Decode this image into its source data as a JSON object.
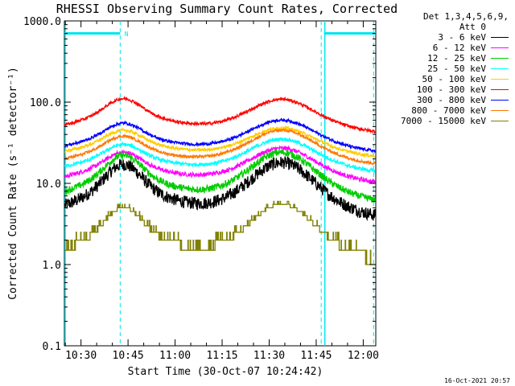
{
  "chart_data": {
    "type": "line",
    "title": "RHESSI Observing Summary Count Rates, Corrected",
    "xlabel": "Start Time (30-Oct-07 10:24:42)",
    "ylabel": "Corrected Count Rate (s⁻¹ detector⁻¹)",
    "yscale": "log",
    "ylim": [
      0.1,
      1000.0
    ],
    "yticks": [
      "0.1",
      "1.0",
      "10.0",
      "100.0",
      "1000.0"
    ],
    "xlim_minutes": [
      24.7,
      124.0
    ],
    "xticks": [
      {
        "label": "10:30",
        "minute": 30
      },
      {
        "label": "10:45",
        "minute": 45
      },
      {
        "label": "11:00",
        "minute": 60
      },
      {
        "label": "11:15",
        "minute": 75
      },
      {
        "label": "11:30",
        "minute": 90
      },
      {
        "label": "11:45",
        "minute": 105
      },
      {
        "label": "12:00",
        "minute": 120
      }
    ],
    "detector_info": [
      "Det 1,3,4,5,6,9,",
      "Att 0"
    ],
    "markers": {
      "night_bars": [
        [
          24.7,
          42.5
        ],
        [
          107.5,
          124.0
        ]
      ],
      "dashed_minutes": [
        42.5,
        106.6,
        123.3
      ],
      "saa_lines_minutes": [
        24.7,
        107.5
      ],
      "n_label": "N",
      "n_minute": 44.5
    },
    "series": [
      {
        "name": "3 - 6 keV",
        "color": "#000000",
        "base": 3.5,
        "peak1": 17,
        "peak2": 18,
        "noise": 0.18
      },
      {
        "name": "6 - 12 keV",
        "color": "#ff00ff",
        "base": 9.5,
        "peak1": 24,
        "peak2": 27,
        "noise": 0.06
      },
      {
        "name": "12 - 25 keV",
        "color": "#00cc00",
        "base": 5.5,
        "peak1": 22,
        "peak2": 24,
        "noise": 0.1
      },
      {
        "name": "25 - 50 keV",
        "color": "#00ffff",
        "base": 13,
        "peak1": 30,
        "peak2": 35,
        "noise": 0.05
      },
      {
        "name": "50 - 100 keV",
        "color": "#ffcc00",
        "base": 20,
        "peak1": 45,
        "peak2": 48,
        "noise": 0.04
      },
      {
        "name": "100 - 300 keV",
        "color": "#ff0000",
        "base": 40,
        "peak1": 110,
        "peak2": 108,
        "noise": 0.04
      },
      {
        "name": "300 - 800 keV",
        "color": "#0000ff",
        "base": 23,
        "peak1": 55,
        "peak2": 60,
        "noise": 0.04
      },
      {
        "name": "800 - 7000 keV",
        "color": "#ff7700",
        "base": 16,
        "peak1": 38,
        "peak2": 45,
        "noise": 0.04
      },
      {
        "name": "7000 - 15000 keV",
        "color": "#808000",
        "base": 1.0,
        "peak1": 5.0,
        "peak2": 5.5,
        "noise": 0.0
      }
    ],
    "timestamp": "16-Oct-2021 20:57"
  }
}
